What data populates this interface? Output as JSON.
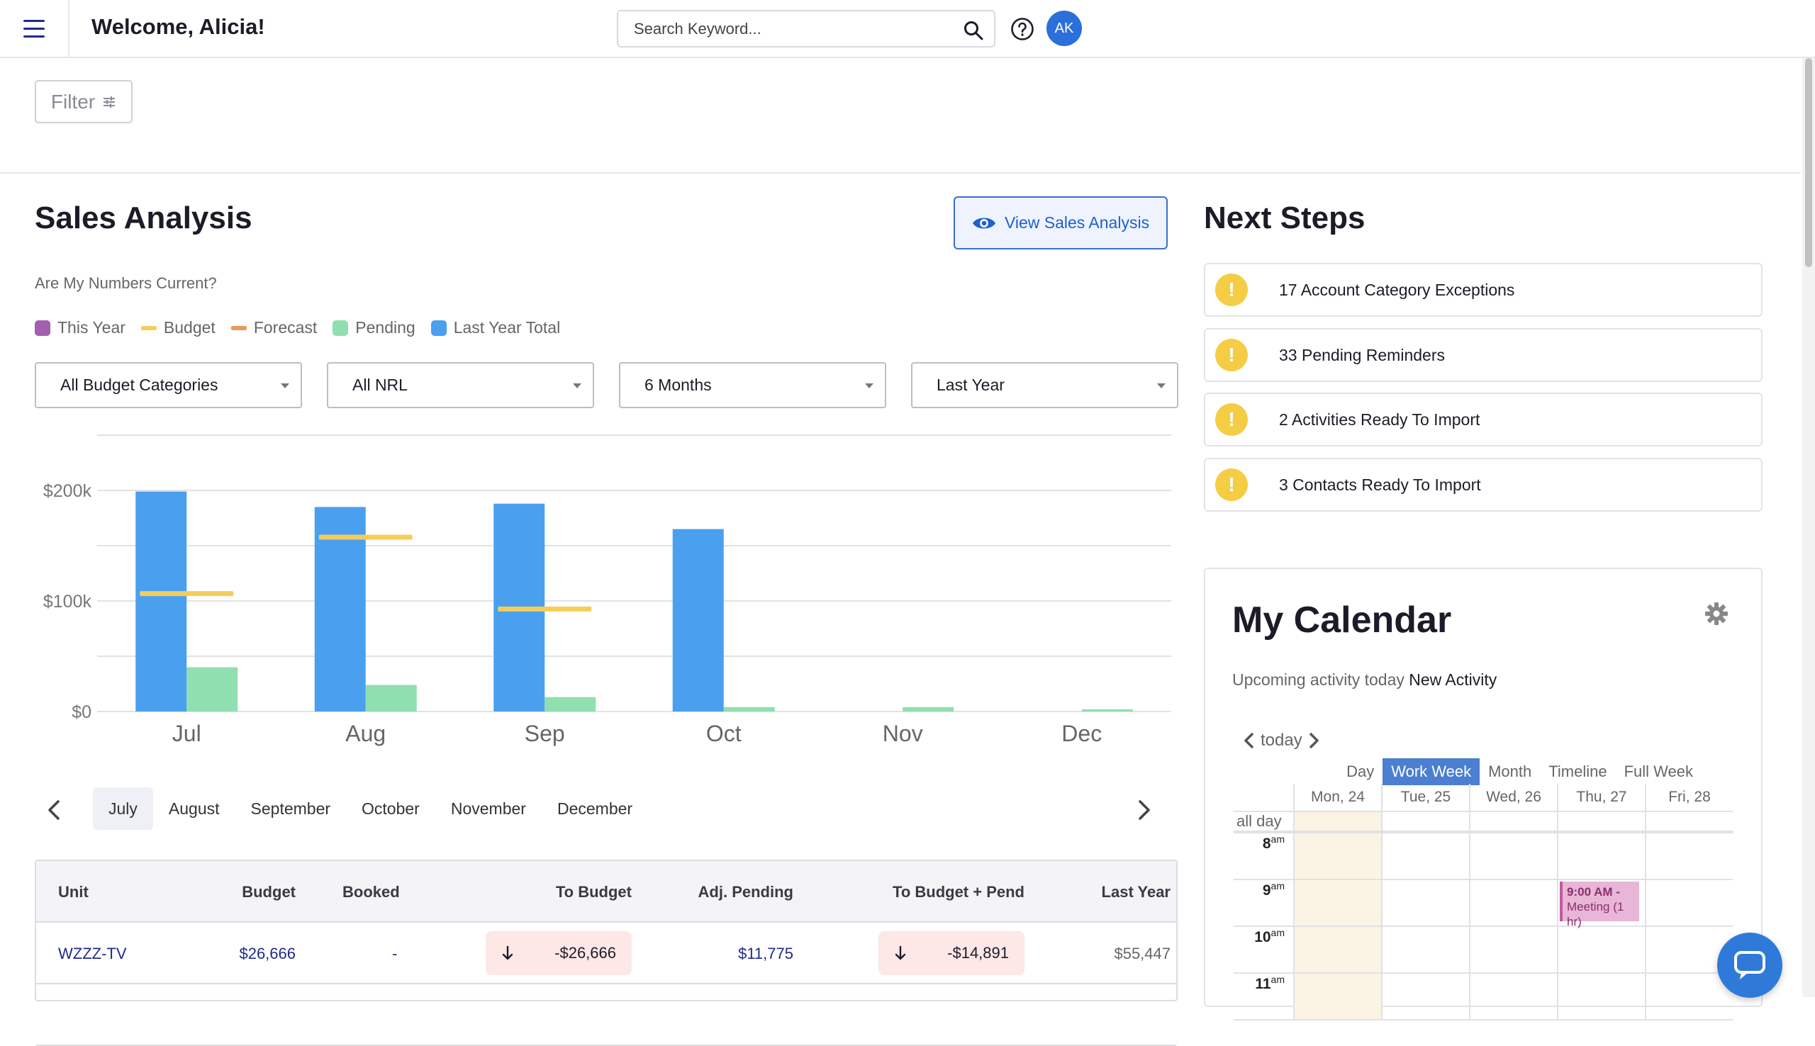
{
  "header": {
    "welcome": "Welcome, Alicia!",
    "search_placeholder": "Search Keyword...",
    "avatar_initials": "AK"
  },
  "filter": {
    "label": "Filter"
  },
  "sales": {
    "title": "Sales Analysis",
    "view_button": "View Sales Analysis",
    "subtitle": "Are My Numbers Current?",
    "legend": [
      {
        "label": "This Year",
        "color": "#a25fb0",
        "shape": "box"
      },
      {
        "label": "Budget",
        "color": "#f5cd5a",
        "shape": "bar"
      },
      {
        "label": "Forecast",
        "color": "#e89a5b",
        "shape": "bar"
      },
      {
        "label": "Pending",
        "color": "#8fdfb0",
        "shape": "box"
      },
      {
        "label": "Last Year Total",
        "color": "#4aa0ef",
        "shape": "box"
      }
    ],
    "dropdowns": [
      "All Budget Categories",
      "All NRL",
      "6 Months",
      "Last Year"
    ]
  },
  "chart_data": {
    "type": "bar",
    "categories": [
      "Jul",
      "Aug",
      "Sep",
      "Oct",
      "Nov",
      "Dec"
    ],
    "series": [
      {
        "name": "Last Year Total",
        "values": [
          199000,
          185000,
          188000,
          165000,
          0,
          0
        ],
        "color": "#4aa0ef"
      },
      {
        "name": "Pending",
        "values": [
          40000,
          24000,
          13000,
          4000,
          4000,
          2000
        ],
        "color": "#8fdfb0"
      },
      {
        "name": "Budget",
        "values": [
          107000,
          158000,
          93000,
          null,
          null,
          null
        ],
        "color": "#f5cd5a"
      }
    ],
    "yticks": [
      "$0",
      "$100k",
      "$200k"
    ],
    "ylim": [
      0,
      250000
    ],
    "grid": true
  },
  "months": {
    "tabs": [
      "July",
      "August",
      "September",
      "October",
      "November",
      "December"
    ],
    "active": "July"
  },
  "table": {
    "headers": [
      "Unit",
      "Budget",
      "Booked",
      "To Budget",
      "Adj. Pending",
      "To Budget + Pend",
      "Last Year"
    ],
    "rows": [
      {
        "unit": "WZZZ-TV",
        "budget": "$26,666",
        "booked": "-",
        "to_budget": "-$26,666",
        "adj_pending": "$11,775",
        "to_budget_pend": "-$14,891",
        "last_year": "$55,447"
      }
    ]
  },
  "next_steps": {
    "title": "Next Steps",
    "items": [
      "17 Account Category Exceptions",
      "33 Pending Reminders",
      "2 Activities Ready To Import",
      "3 Contacts Ready To Import"
    ]
  },
  "calendar": {
    "title": "My Calendar",
    "upcoming": "Upcoming activity today",
    "new_activity": "New Activity",
    "today": "today",
    "views": [
      "Day",
      "Work Week",
      "Month",
      "Timeline",
      "Full Week"
    ],
    "active_view": "Work Week",
    "days": [
      "Mon, 24",
      "Tue, 25",
      "Wed, 26",
      "Thu, 27",
      "Fri, 28"
    ],
    "all_day": "all day",
    "hours": [
      {
        "h": "8",
        "ap": "am"
      },
      {
        "h": "9",
        "ap": "am"
      },
      {
        "h": "10",
        "ap": "am"
      },
      {
        "h": "11",
        "ap": "am"
      }
    ],
    "event": {
      "time": "9:00 AM -",
      "title": "Meeting (1 hr)"
    }
  }
}
